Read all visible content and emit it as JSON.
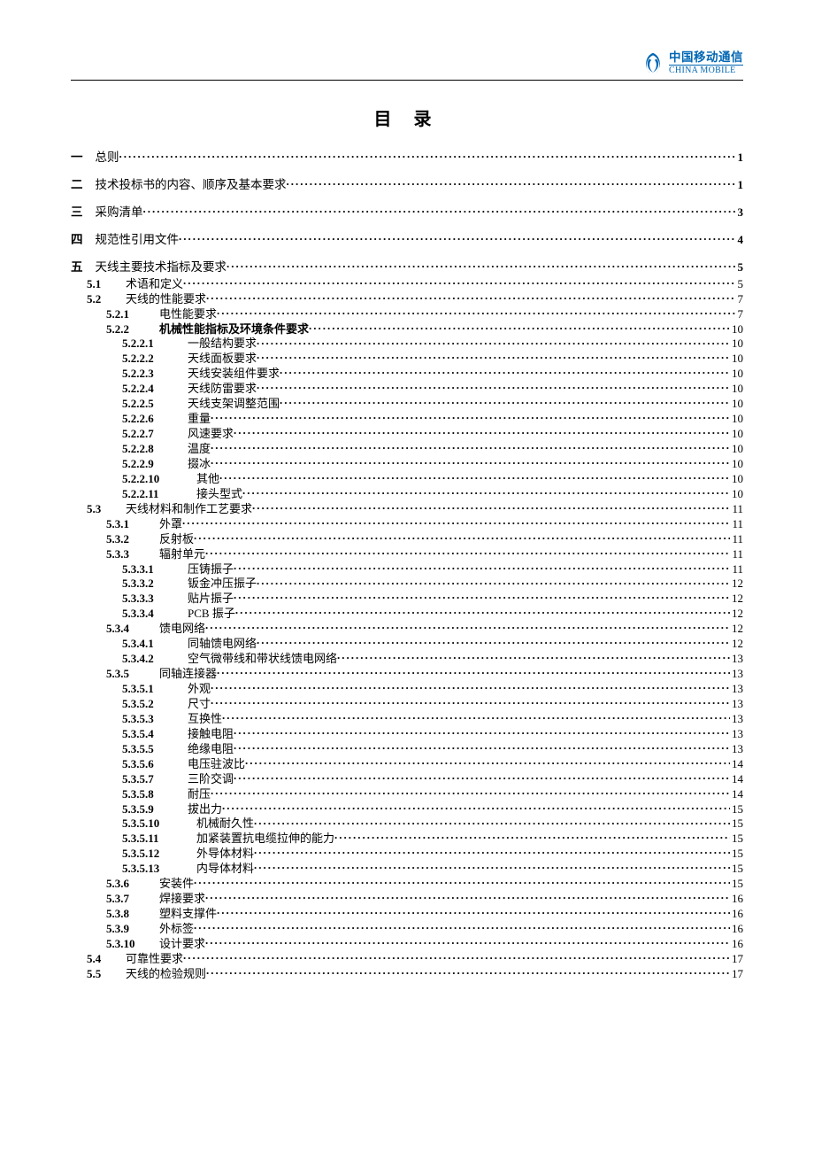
{
  "brand": {
    "cn": "中国移动通信",
    "en": "CHINA MOBILE"
  },
  "title": "目 录",
  "colors": {
    "brand": "#0066b3",
    "text": "#000000",
    "bg": "#ffffff"
  },
  "toc": [
    {
      "lvl": "top",
      "num": "一",
      "label": "总则",
      "page": "1"
    },
    {
      "lvl": "top",
      "num": "二",
      "label": "技术投标书的内容、顺序及基本要求",
      "page": "1"
    },
    {
      "lvl": "top",
      "num": "三",
      "label": "采购清单",
      "page": "3"
    },
    {
      "lvl": "top",
      "num": "四",
      "label": "规范性引用文件",
      "page": "4"
    },
    {
      "lvl": "top",
      "num": "五",
      "label": "天线主要技术指标及要求",
      "page": "5"
    },
    {
      "lvl": "1",
      "num": "5.1",
      "label": "术语和定义",
      "page": "5"
    },
    {
      "lvl": "1",
      "num": "5.2",
      "label": "天线的性能要求",
      "page": "7"
    },
    {
      "lvl": "2",
      "num": "5.2.1",
      "label": "电性能要求",
      "page": "7"
    },
    {
      "lvl": "2",
      "num": "5.2.2",
      "label": "机械性能指标及环境条件要求",
      "page": "10"
    },
    {
      "lvl": "3",
      "num": "5.2.2.1",
      "label": "一般结构要求",
      "page": "10"
    },
    {
      "lvl": "3",
      "num": "5.2.2.2",
      "label": "天线面板要求",
      "page": "10"
    },
    {
      "lvl": "3",
      "num": "5.2.2.3",
      "label": "天线安装组件要求",
      "page": "10"
    },
    {
      "lvl": "3",
      "num": "5.2.2.4",
      "label": "天线防雷要求",
      "page": "10"
    },
    {
      "lvl": "3",
      "num": "5.2.2.5",
      "label": "天线支架调整范围",
      "page": "10"
    },
    {
      "lvl": "3",
      "num": "5.2.2.6",
      "label": "重量",
      "page": "10"
    },
    {
      "lvl": "3",
      "num": "5.2.2.7",
      "label": "风速要求",
      "page": "10"
    },
    {
      "lvl": "3",
      "num": "5.2.2.8",
      "label": "温度",
      "page": "10"
    },
    {
      "lvl": "3",
      "num": "5.2.2.9",
      "label": "掇冰",
      "page": "10"
    },
    {
      "lvl": "3b",
      "num": "5.2.2.10",
      "label": "其他",
      "page": "10"
    },
    {
      "lvl": "3b",
      "num": "5.2.2.11",
      "label": "接头型式",
      "page": "10"
    },
    {
      "lvl": "1",
      "num": "5.3",
      "label": "天线材料和制作工艺要求",
      "page": "11"
    },
    {
      "lvl": "2",
      "num": "5.3.1",
      "label": "外罩",
      "page": "11"
    },
    {
      "lvl": "2",
      "num": "5.3.2",
      "label": "反射板",
      "page": "11"
    },
    {
      "lvl": "2",
      "num": "5.3.3",
      "label": "辐射单元",
      "page": "11"
    },
    {
      "lvl": "3",
      "num": "5.3.3.1",
      "label": "压铸振子",
      "page": "11"
    },
    {
      "lvl": "3",
      "num": "5.3.3.2",
      "label": "钣金冲压振子",
      "page": "12"
    },
    {
      "lvl": "3",
      "num": "5.3.3.3",
      "label": "贴片振子",
      "page": "12"
    },
    {
      "lvl": "3",
      "num": "5.3.3.4",
      "label": "PCB 振子",
      "page": "12"
    },
    {
      "lvl": "2",
      "num": "5.3.4",
      "label": "馈电网络",
      "page": "12"
    },
    {
      "lvl": "3",
      "num": "5.3.4.1",
      "label": "同轴馈电网络",
      "page": "12"
    },
    {
      "lvl": "3",
      "num": "5.3.4.2",
      "label": "空气微带线和带状线馈电网络",
      "page": "13"
    },
    {
      "lvl": "2",
      "num": "5.3.5",
      "label": "同轴连接器",
      "page": "13"
    },
    {
      "lvl": "3",
      "num": "5.3.5.1",
      "label": "外观",
      "page": "13"
    },
    {
      "lvl": "3",
      "num": "5.3.5.2",
      "label": "尺寸",
      "page": "13"
    },
    {
      "lvl": "3",
      "num": "5.3.5.3",
      "label": "互换性",
      "page": "13"
    },
    {
      "lvl": "3",
      "num": "5.3.5.4",
      "label": "接触电阻",
      "page": "13"
    },
    {
      "lvl": "3",
      "num": "5.3.5.5",
      "label": "绝缘电阻",
      "page": "13"
    },
    {
      "lvl": "3",
      "num": "5.3.5.6",
      "label": "电压驻波比",
      "page": "14"
    },
    {
      "lvl": "3",
      "num": "5.3.5.7",
      "label": "三阶交调",
      "page": "14"
    },
    {
      "lvl": "3",
      "num": "5.3.5.8",
      "label": "耐压",
      "page": "14"
    },
    {
      "lvl": "3",
      "num": "5.3.5.9",
      "label": "拔出力",
      "page": "15"
    },
    {
      "lvl": "3b",
      "num": "5.3.5.10",
      "label": "机械耐久性",
      "page": "15"
    },
    {
      "lvl": "3b",
      "num": "5.3.5.11",
      "label": "加紧装置抗电缆拉伸的能力",
      "page": "15"
    },
    {
      "lvl": "3b",
      "num": "5.3.5.12",
      "label": "外导体材料",
      "page": "15"
    },
    {
      "lvl": "3b",
      "num": "5.3.5.13",
      "label": "内导体材料",
      "page": "15"
    },
    {
      "lvl": "2",
      "num": "5.3.6",
      "label": "安装件",
      "page": "15"
    },
    {
      "lvl": "2",
      "num": "5.3.7",
      "label": "焊接要求",
      "page": "16"
    },
    {
      "lvl": "2",
      "num": "5.3.8",
      "label": "塑料支撑件",
      "page": "16"
    },
    {
      "lvl": "2",
      "num": "5.3.9",
      "label": "外标签",
      "page": "16"
    },
    {
      "lvl": "2",
      "num": "5.3.10",
      "label": "设计要求",
      "page": "16"
    },
    {
      "lvl": "1",
      "num": "5.4",
      "label": "可靠性要求",
      "page": "17"
    },
    {
      "lvl": "1",
      "num": "5.5",
      "label": "天线的检验规则",
      "page": "17"
    }
  ]
}
